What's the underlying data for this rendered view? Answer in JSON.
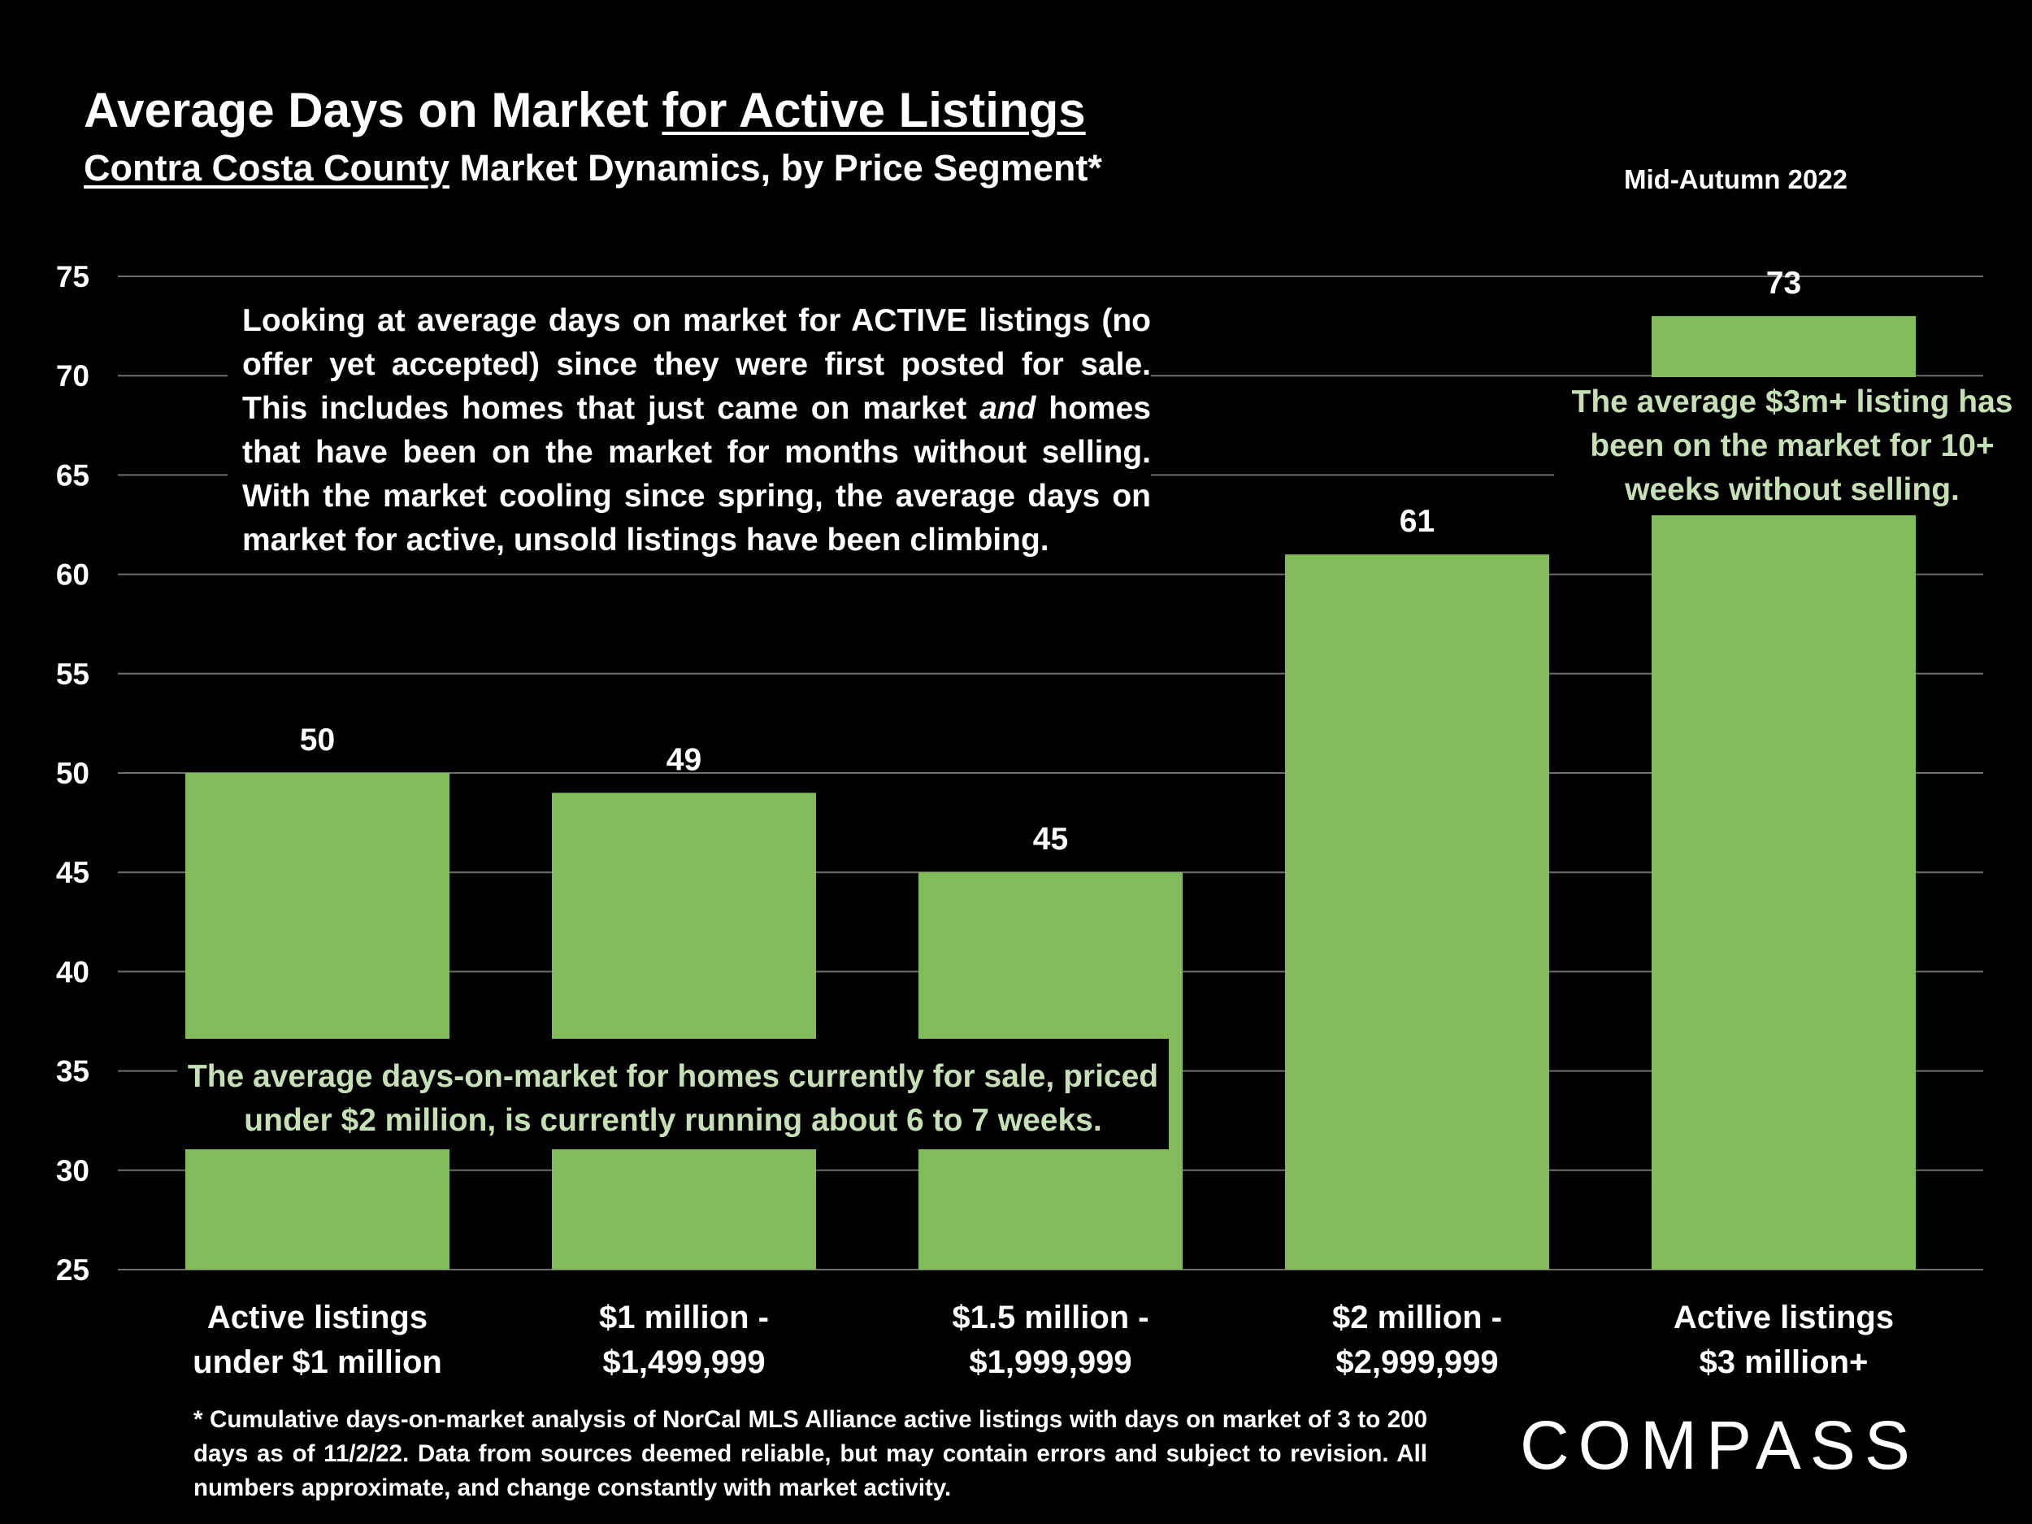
{
  "header": {
    "title_plain": "Average Days on Market ",
    "title_underlined": "for Active Listings",
    "subtitle_underlined": "Contra Costa County",
    "subtitle_plain": " Market Dynamics, by Price Segment*",
    "date_label": "Mid-Autumn 2022"
  },
  "annotations": {
    "top_note": "Looking at average days on market for ACTIVE listings (no offer yet accepted) since they were first posted for sale. This includes homes that just came on market and homes that have been on the market for months without selling. With the market cooling since spring, the average days on market for active, unsold listings have been climbing.",
    "right_note": "The average $3m+ listing has been on the market for 10+ weeks without selling.",
    "bottom_note": "The average days-on-market for homes currently for sale, priced under $2 million, is currently running about 6 to 7 weeks."
  },
  "footnote": "* Cumulative days-on-market analysis of NorCal MLS Alliance active listings with days on market of 3 to 200 days as of 11/2/22. Data from sources deemed reliable, but may contain errors and subject to revision. All numbers approximate, and change constantly with market activity.",
  "brand": {
    "logo_text": "COMPASS"
  },
  "colors": {
    "bar": "#81bb5a",
    "note_green": "#c5e0b4",
    "background": "#000000",
    "text": "#ffffff"
  },
  "chart_data": {
    "type": "bar",
    "categories": [
      "Active listings under $1 million",
      "$1 million - $1,499,999",
      "$1.5 million - $1,999,999",
      "$2 million - $2,999,999",
      "Active listings $3 million+"
    ],
    "category_lines": [
      [
        "Active listings",
        "under $1 million"
      ],
      [
        "$1 million -",
        "$1,499,999"
      ],
      [
        "$1.5 million -",
        "$1,999,999"
      ],
      [
        "$2 million -",
        "$2,999,999"
      ],
      [
        "Active listings",
        "$3 million+"
      ]
    ],
    "values": [
      50,
      49,
      45,
      61,
      73
    ],
    "ylim": [
      25,
      75
    ],
    "yticks": [
      25,
      30,
      35,
      40,
      45,
      50,
      55,
      60,
      65,
      70,
      75
    ],
    "grid": true,
    "data_labels": true
  }
}
